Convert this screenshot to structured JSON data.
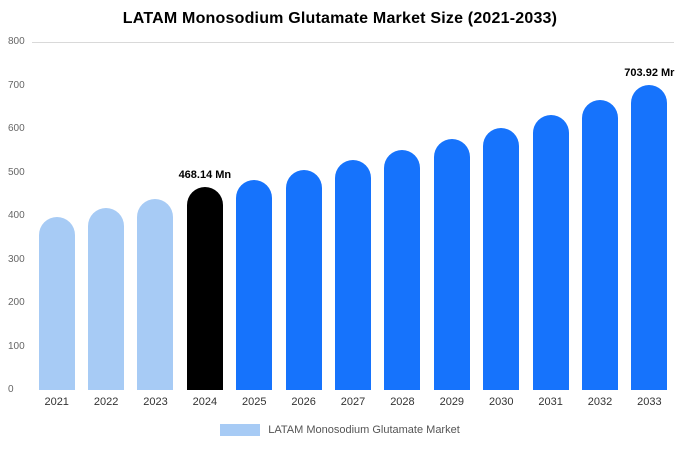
{
  "title": "LATAM Monosodium Glutamate Market Size (2021-2033)",
  "legend": {
    "label": "LATAM Monosodium Glutamate Market",
    "swatch_color": "#a7cbf5"
  },
  "chart_data": {
    "type": "bar",
    "title": "LATAM Monosodium Glutamate Market Size (2021-2033)",
    "categories": [
      "2021",
      "2022",
      "2023",
      "2024",
      "2025",
      "2026",
      "2027",
      "2028",
      "2029",
      "2030",
      "2031",
      "2032",
      "2033"
    ],
    "series": [
      {
        "name": "LATAM Monosodium Glutamate Market",
        "values": [
          400,
          420,
          440,
          468.14,
          485,
          507,
          530,
          553,
          578,
          605,
          635,
          668,
          703.92
        ]
      }
    ],
    "ylim": [
      0,
      800
    ],
    "yticks": [
      0,
      100,
      200,
      300,
      400,
      500,
      600,
      700,
      800
    ],
    "xlabel": "",
    "ylabel": "",
    "grid": "top-line-only",
    "legend_position": "bottom",
    "data_labels": [
      {
        "index": 3,
        "text": "468.14 Mn"
      },
      {
        "index": 12,
        "text": "703.92 Mr"
      }
    ],
    "bar_colors": {
      "default": "#1673fc",
      "light": "#a7cbf5",
      "light_indices": [
        0,
        1,
        2
      ],
      "highlight": "#000000",
      "highlight_index": 3
    }
  }
}
